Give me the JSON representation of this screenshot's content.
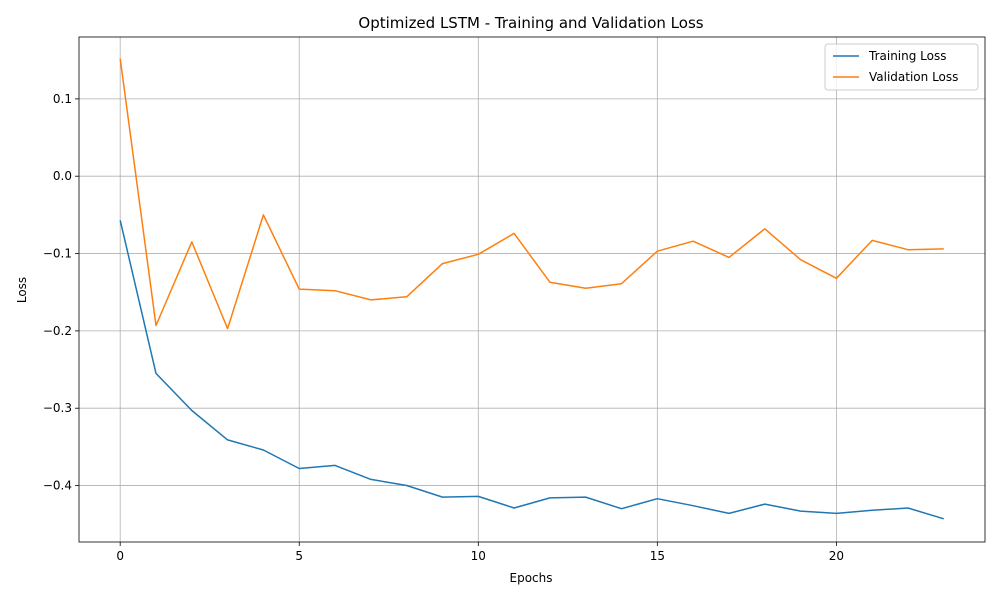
{
  "chart_data": {
    "type": "line",
    "title": "Optimized LSTM - Training and Validation Loss",
    "xlabel": "Epochs",
    "ylabel": "Loss",
    "xlim": [
      -1.15,
      24.15
    ],
    "ylim": [
      -0.473,
      0.18
    ],
    "xticks": [
      0,
      5,
      10,
      15,
      20
    ],
    "yticks": [
      0.1,
      0.0,
      -0.1,
      -0.2,
      -0.3,
      -0.4
    ],
    "ytick_labels": [
      "0.1",
      "0.0",
      "−0.1",
      "−0.2",
      "−0.3",
      "−0.4"
    ],
    "grid": true,
    "legend_position": "top-right",
    "x": [
      0,
      1,
      2,
      3,
      4,
      5,
      6,
      7,
      8,
      9,
      10,
      11,
      12,
      13,
      14,
      15,
      16,
      17,
      18,
      19,
      20,
      21,
      22,
      23
    ],
    "series": [
      {
        "name": "Training Loss",
        "color": "#1f77b4",
        "values": [
          -0.057,
          -0.255,
          -0.303,
          -0.341,
          -0.354,
          -0.378,
          -0.374,
          -0.392,
          -0.4,
          -0.415,
          -0.414,
          -0.429,
          -0.416,
          -0.415,
          -0.43,
          -0.417,
          -0.426,
          -0.436,
          -0.424,
          -0.433,
          -0.436,
          -0.432,
          -0.429,
          -0.443
        ]
      },
      {
        "name": "Validation Loss",
        "color": "#ff7f0e",
        "values": [
          0.152,
          -0.193,
          -0.085,
          -0.197,
          -0.05,
          -0.146,
          -0.148,
          -0.16,
          -0.156,
          -0.113,
          -0.101,
          -0.074,
          -0.137,
          -0.145,
          -0.139,
          -0.097,
          -0.084,
          -0.105,
          -0.068,
          -0.108,
          -0.132,
          -0.083,
          -0.095,
          -0.094
        ]
      }
    ]
  }
}
